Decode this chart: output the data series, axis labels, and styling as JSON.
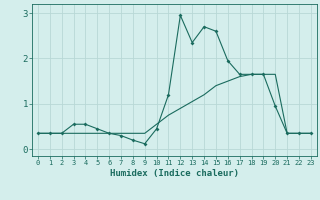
{
  "title": "",
  "xlabel": "Humidex (Indice chaleur)",
  "ylabel": "",
  "bg_color": "#d4eeec",
  "grid_color": "#b8d8d6",
  "line_color": "#1a6b5e",
  "line1_x": [
    0,
    1,
    2,
    3,
    4,
    5,
    6,
    7,
    8,
    9,
    10,
    11,
    12,
    13,
    14,
    15,
    16,
    17,
    18,
    19,
    20,
    21,
    22,
    23
  ],
  "line1_y": [
    0.35,
    0.35,
    0.35,
    0.55,
    0.55,
    0.45,
    0.35,
    0.3,
    0.2,
    0.12,
    0.45,
    1.2,
    2.95,
    2.35,
    2.7,
    2.6,
    1.95,
    1.65,
    1.65,
    1.65,
    0.95,
    0.35,
    0.35,
    0.35
  ],
  "line2_x": [
    0,
    1,
    2,
    3,
    4,
    5,
    6,
    7,
    8,
    9,
    10,
    11,
    12,
    13,
    14,
    15,
    16,
    17,
    18,
    19,
    20,
    21,
    22,
    23
  ],
  "line2_y": [
    0.35,
    0.35,
    0.35,
    0.35,
    0.35,
    0.35,
    0.35,
    0.35,
    0.35,
    0.35,
    0.55,
    0.75,
    0.9,
    1.05,
    1.2,
    1.4,
    1.5,
    1.6,
    1.65,
    1.65,
    1.65,
    0.35,
    0.35,
    0.35
  ],
  "ylim": [
    -0.15,
    3.2
  ],
  "xlim": [
    -0.5,
    23.5
  ],
  "yticks": [
    0,
    1,
    2,
    3
  ],
  "xticks": [
    0,
    1,
    2,
    3,
    4,
    5,
    6,
    7,
    8,
    9,
    10,
    11,
    12,
    13,
    14,
    15,
    16,
    17,
    18,
    19,
    20,
    21,
    22,
    23
  ],
  "tick_fontsize": 5.0,
  "xlabel_fontsize": 6.5
}
